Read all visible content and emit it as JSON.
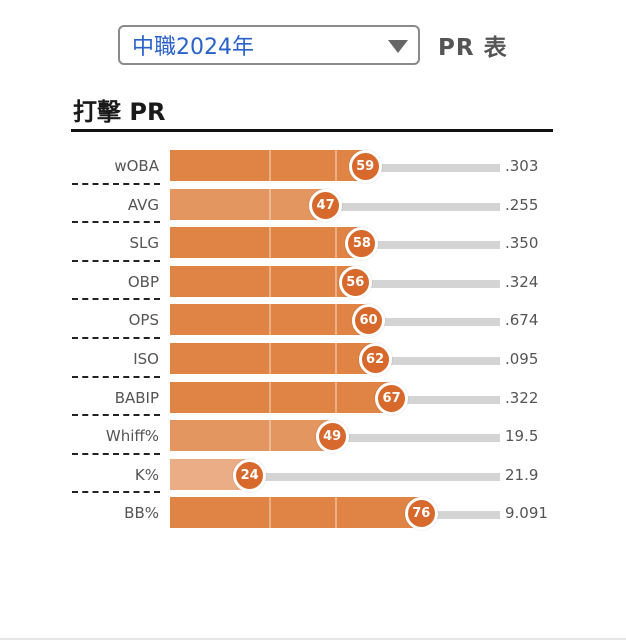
{
  "header": {
    "season_select": {
      "value": "中職2024年",
      "caret_icon": "chevron-down-icon"
    },
    "table_label": "PR 表"
  },
  "section": {
    "title": "打擊 PR"
  },
  "colors": {
    "select_text": "#2a62c9",
    "bar_high": "#e08446",
    "bar_mid": "#e39660",
    "bar_low": "#eaad86",
    "badge": "#d6692b",
    "track": "#d4d4d4"
  },
  "scale": {
    "min": 0,
    "max": 100
  },
  "rows": [
    {
      "label": "wOBA",
      "pr": 59,
      "value": ".303"
    },
    {
      "label": "AVG",
      "pr": 47,
      "value": ".255"
    },
    {
      "label": "SLG",
      "pr": 58,
      "value": ".350"
    },
    {
      "label": "OBP",
      "pr": 56,
      "value": ".324"
    },
    {
      "label": "OPS",
      "pr": 60,
      "value": ".674"
    },
    {
      "label": "ISO",
      "pr": 62,
      "value": ".095"
    },
    {
      "label": "BABIP",
      "pr": 67,
      "value": ".322"
    },
    {
      "label": "Whiff%",
      "pr": 49,
      "value": "19.5"
    },
    {
      "label": "K%",
      "pr": 24,
      "value": "21.9"
    },
    {
      "label": "BB%",
      "pr": 76,
      "value": "9.091"
    }
  ]
}
